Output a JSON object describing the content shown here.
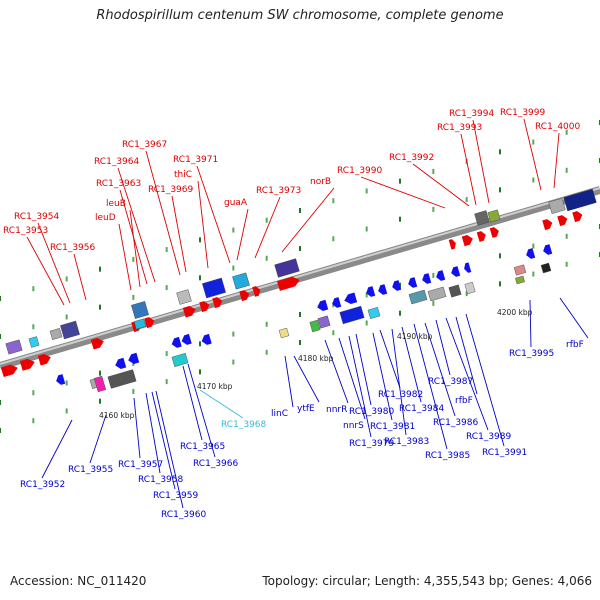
{
  "title": "Rhodospirillum centenum SW chromosome, complete genome",
  "footer": {
    "accession": "Accession: NC_011420",
    "summary": "Topology: circular; Length: 4,355,543 bp; Genes: 4,066"
  },
  "colors": {
    "forward_label": "#dd0000",
    "reverse_label": "#0000cc",
    "rna_label": "#33bbdd",
    "forward_gene": "#ee0000",
    "reverse_gene": "#1111ee",
    "backbone": "#888888"
  },
  "kbp_labels": [
    "4160 kbp",
    "4170 kbp",
    "4180 kbp",
    "4190 kbp",
    "4200 kbp"
  ],
  "forward_labels": [
    "RC1_3953",
    "RC1_3954",
    "RC1_3956",
    "leuD",
    "leuB",
    "RC1_3963",
    "RC1_3964",
    "RC1_3967",
    "RC1_3969",
    "thiC",
    "RC1_3971",
    "guaA",
    "RC1_3973",
    "norB",
    "RC1_3990",
    "RC1_3992",
    "RC1_3993",
    "RC1_3994",
    "RC1_3999",
    "RC1_4000"
  ],
  "reverse_labels": [
    "RC1_3952",
    "RC1_3955",
    "RC1_3957",
    "RC1_3958",
    "RC1_3959",
    "RC1_3960",
    "RC1_3965",
    "RC1_3966",
    "RC1_3968",
    "linC",
    "ytfE",
    "nnrR",
    "nnrS",
    "RC1_3979",
    "RC1_3980",
    "RC1_3981",
    "RC1_3982",
    "RC1_3983",
    "RC1_3984",
    "RC1_3985",
    "RC1_3986",
    "RC1_3987",
    "rfbF",
    "RC1_3989",
    "RC1_3991",
    "RC1_3995",
    "rfbF"
  ]
}
